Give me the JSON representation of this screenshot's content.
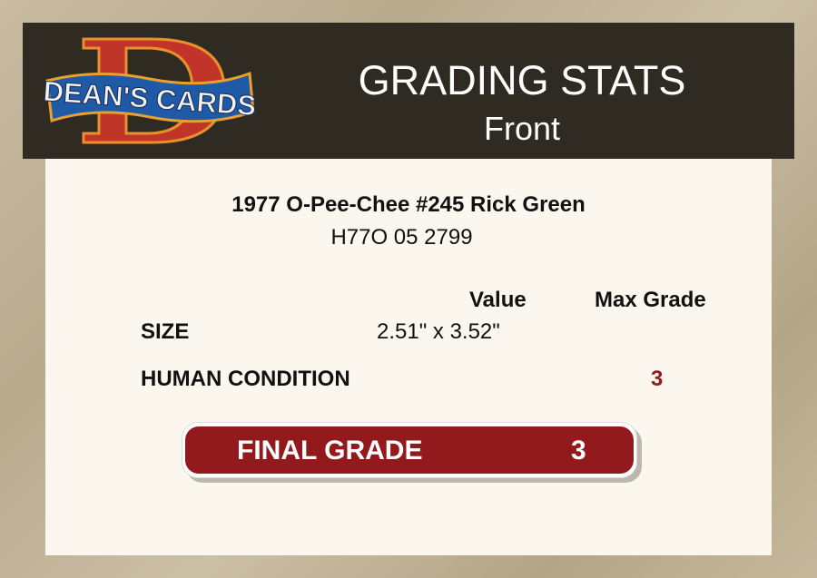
{
  "logo": {
    "text": "DEAN'S CARDS",
    "letter": "D"
  },
  "header": {
    "title": "GRADING STATS",
    "subtitle": "Front"
  },
  "card": {
    "name": "1977 O-Pee-Chee #245 Rick Green",
    "cert": "H77O 05 2799"
  },
  "table": {
    "columns": [
      "Value",
      "Max Grade"
    ],
    "rows": [
      {
        "label": "SIZE",
        "value": "2.51\" x 3.52\"",
        "max_grade": ""
      },
      {
        "label": "HUMAN CONDITION",
        "value": "",
        "max_grade": "3"
      }
    ]
  },
  "final": {
    "label": "FINAL GRADE",
    "value": "3"
  },
  "colors": {
    "accent": "#921a1c",
    "header_bg": "#2f2a22",
    "card_bg": "#fcf7ee"
  }
}
